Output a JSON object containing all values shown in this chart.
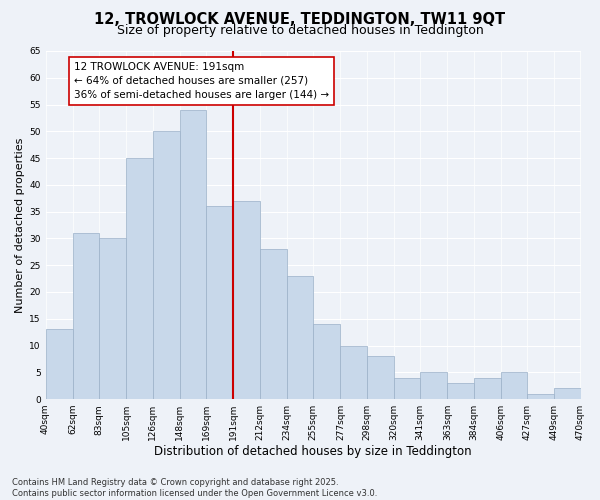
{
  "title": "12, TROWLOCK AVENUE, TEDDINGTON, TW11 9QT",
  "subtitle": "Size of property relative to detached houses in Teddington",
  "xlabel": "Distribution of detached houses by size in Teddington",
  "ylabel": "Number of detached properties",
  "bins": [
    40,
    62,
    83,
    105,
    126,
    148,
    169,
    191,
    212,
    234,
    255,
    277,
    298,
    320,
    341,
    363,
    384,
    406,
    427,
    449,
    470
  ],
  "counts": [
    13,
    31,
    30,
    45,
    50,
    54,
    36,
    37,
    28,
    23,
    14,
    10,
    8,
    4,
    5,
    3,
    4,
    5,
    1,
    2
  ],
  "bar_color": "#c8d8ea",
  "bar_edge_color": "#9ab0c8",
  "vline_x": 191,
  "vline_color": "#cc0000",
  "annotation_text": "12 TROWLOCK AVENUE: 191sqm\n← 64% of detached houses are smaller (257)\n36% of semi-detached houses are larger (144) →",
  "annotation_box_facecolor": "white",
  "annotation_box_edgecolor": "#cc0000",
  "ylim": [
    0,
    65
  ],
  "yticks": [
    0,
    5,
    10,
    15,
    20,
    25,
    30,
    35,
    40,
    45,
    50,
    55,
    60,
    65
  ],
  "background_color": "#eef2f8",
  "grid_color": "white",
  "footer_text": "Contains HM Land Registry data © Crown copyright and database right 2025.\nContains public sector information licensed under the Open Government Licence v3.0.",
  "title_fontsize": 10.5,
  "subtitle_fontsize": 9,
  "xlabel_fontsize": 8.5,
  "ylabel_fontsize": 8,
  "tick_fontsize": 6.5,
  "annotation_fontsize": 7.5,
  "footer_fontsize": 6
}
